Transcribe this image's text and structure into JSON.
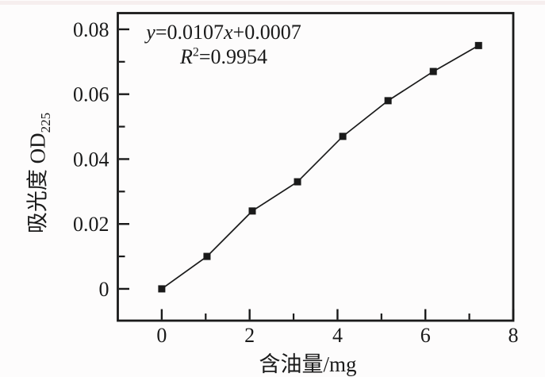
{
  "figure": {
    "equation_line1": {
      "y_var": "y",
      "slope_part": "=0.0107",
      "x_var": "x",
      "intercept_part": "+0.0007"
    },
    "equation_line2": {
      "r_var": "R",
      "r_exponent": "2",
      "r_value_part": "=0.9954"
    },
    "y_axis_title": {
      "main": "吸光度 OD",
      "subscript": "225"
    },
    "x_axis_title": "含油量/mg"
  },
  "chart_data": {
    "type": "line",
    "title": "",
    "xlabel": "含油量/mg",
    "ylabel": "吸光度OD225",
    "annotations": [
      "y=0.0107x+0.0007",
      "R²=0.9954"
    ],
    "x": [
      0,
      1.03,
      2.06,
      3.09,
      4.12,
      5.15,
      6.18,
      7.21
    ],
    "y": [
      0.0,
      0.01,
      0.024,
      0.033,
      0.047,
      0.058,
      0.067,
      0.075
    ],
    "marker": "filled-square",
    "line_style": "solid",
    "color": "#1a1a1a",
    "xlim": [
      -1.0,
      8.0
    ],
    "ylim": [
      -0.0098,
      0.085
    ],
    "x_major_ticks": [
      0,
      2,
      4,
      6,
      8
    ],
    "x_tick_labels": [
      "0",
      "2",
      "4",
      "6",
      "8"
    ],
    "x_minor_ticks": [
      1,
      3,
      5,
      7
    ],
    "y_major_ticks": [
      0,
      0.02,
      0.04,
      0.06,
      0.08
    ],
    "y_tick_labels": [
      "0",
      "0.02",
      "0.04",
      "0.06",
      "0.08"
    ],
    "y_minor_ticks": [
      0.01,
      0.03,
      0.05,
      0.07
    ],
    "grid": false,
    "legend": false,
    "tick_direction": "in"
  }
}
